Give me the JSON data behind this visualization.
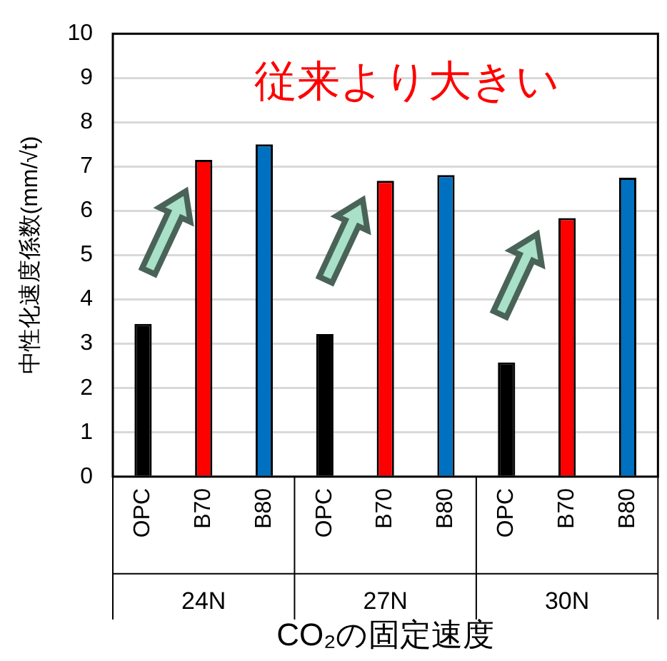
{
  "chart_data": {
    "type": "bar",
    "categories": [
      "OPC",
      "B70",
      "B80",
      "OPC",
      "B70",
      "B80",
      "OPC",
      "B70",
      "B80"
    ],
    "values": [
      3.45,
      7.15,
      7.5,
      3.22,
      6.68,
      6.81,
      2.58,
      5.84,
      6.75
    ],
    "colors": [
      "#000000",
      "#ff0000",
      "#0070c0",
      "#000000",
      "#ff0000",
      "#0070c0",
      "#000000",
      "#ff0000",
      "#0070c0"
    ],
    "ylabel": "中性化速度係数(mm/√t)",
    "xlabel": "CO₂の固定速度",
    "annotations": [
      "従来より大きい",
      "24N",
      "27N",
      "30N"
    ],
    "ylim": [
      0,
      10
    ],
    "yticks": [
      0,
      1,
      2,
      3,
      4,
      5,
      6,
      7,
      8,
      9,
      10
    ],
    "grid": "y",
    "legend": false
  }
}
